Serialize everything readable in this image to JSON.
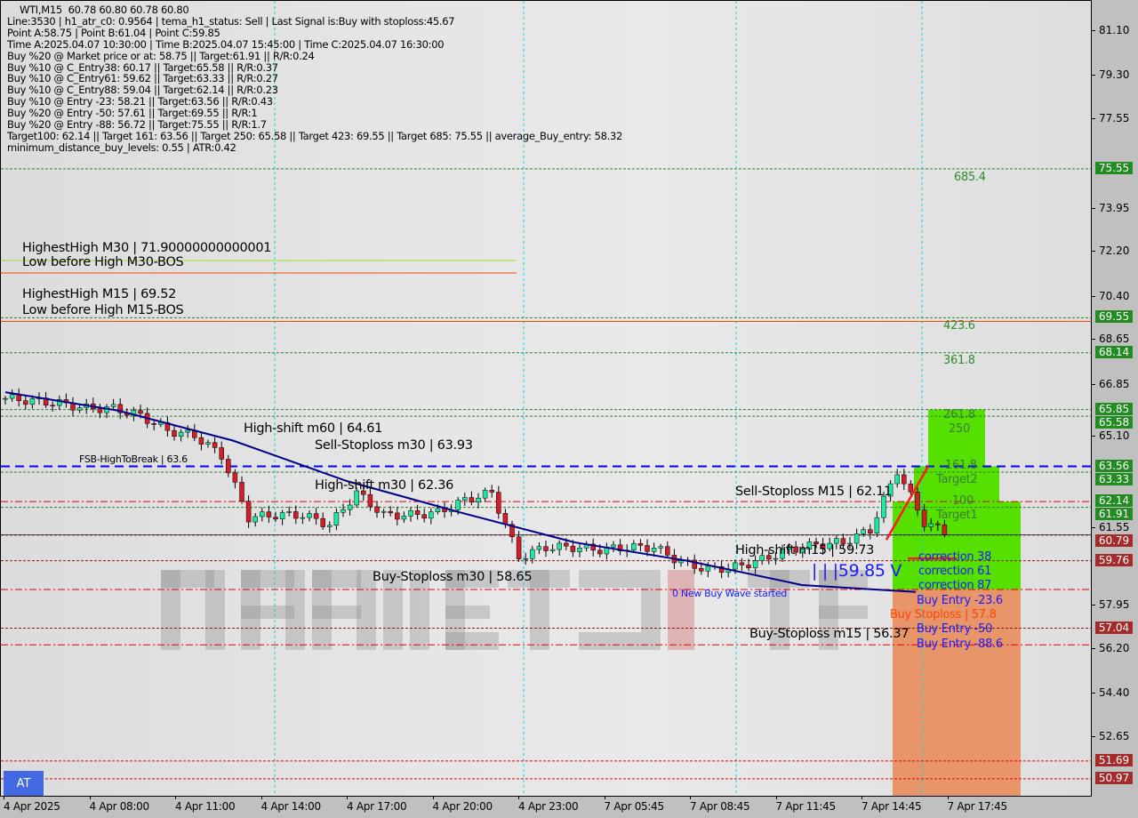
{
  "watermark": "MARKETZI TRADE",
  "info_lines": [
    "WTI,M15  60.78 60.80 60.78 60.80",
    "Line:3530 | h1_atr_c0: 0.9564 | tema_h1_status: Sell | Last Signal is:Buy with stoploss:45.67",
    "Point A:58.75 | Point B:61.04 | Point C:59.85",
    "Time A:2025.04.07 10:30:00 | Time B:2025.04.07 15:45:00 | Time C:2025.04.07 16:30:00",
    "Buy %20 @ Market price or at: 58.75 || Target:61.91 || R/R:0.24",
    "Buy %10 @ C_Entry38: 60.17 || Target:65.58 || R/R:0.37",
    "Buy %10 @ C_Entry61: 59.62 || Target:63.33 || R/R:0.27",
    "Buy %10 @ C_Entry88: 59.04 || Target:62.14 || R/R:0.23",
    "Buy %10 @ Entry -23: 58.21 || Target:63.56 || R/R:0.43",
    "Buy %20 @ Entry -50: 57.61 || Target:69.55 || R/R:1",
    "Buy %20 @ Entry -88: 56.72 || Target:75.55 || R/R:1.7",
    "Target100: 62.14 || Target 161: 63.56 || Target 250: 65.58 || Target 423: 69.55 || Target 685: 75.55 || average_Buy_entry: 58.32",
    "minimum_distance_buy_levels: 0.55 | ATR:0.42"
  ],
  "at_button": "AT",
  "chart_data": {
    "type": "candlestick",
    "symbol": "WTI",
    "timeframe": "M15",
    "ylim": [
      50.3,
      82.3
    ],
    "x_ticks": [
      "4 Apr 2025",
      "4 Apr 08:00",
      "4 Apr 11:00",
      "4 Apr 14:00",
      "4 Apr 17:00",
      "4 Apr 20:00",
      "4 Apr 23:00",
      "7 Apr 05:45",
      "7 Apr 08:45",
      "7 Apr 11:45",
      "7 Apr 14:45",
      "7 Apr 17:45"
    ],
    "y_ticks": [
      81.1,
      79.3,
      77.55,
      73.95,
      72.2,
      70.4,
      68.65,
      66.85,
      65.1,
      61.55,
      57.95,
      56.2,
      54.4,
      52.65
    ],
    "hourly_close_approx": [
      66.3,
      66.2,
      66.1,
      65.9,
      65.9,
      65.6,
      65.0,
      64.8,
      64.0,
      61.5,
      61.6,
      61.6,
      61.2,
      62.5,
      61.6,
      61.6,
      61.7,
      62.2,
      62.5,
      59.9,
      60.3,
      60.3,
      60.2,
      60.3,
      60.3,
      59.7,
      59.4,
      59.5,
      59.8,
      60.2,
      60.4,
      60.5,
      61.0,
      63.4,
      61.3,
      60.8
    ],
    "moving_average_approx": [
      66.55,
      65.8,
      64.6,
      62.97,
      61.7,
      60.5,
      59.75,
      58.78,
      58.5
    ],
    "price_badges": [
      {
        "value": "75.55",
        "color": "#228b22"
      },
      {
        "value": "69.55",
        "color": "#228b22"
      },
      {
        "value": "68.14",
        "color": "#228b22"
      },
      {
        "value": "65.58",
        "color": "#228b22"
      },
      {
        "value": "65.85",
        "color": "#228b22"
      },
      {
        "value": "63.33",
        "color": "#228b22"
      },
      {
        "value": "63.56",
        "color": "#228b22"
      },
      {
        "value": "62.14",
        "color": "#228b22"
      },
      {
        "value": "61.91",
        "color": "#228b22"
      },
      {
        "value": "60.79",
        "color": "#a52a2a"
      },
      {
        "value": "59.76",
        "color": "#a52a2a"
      },
      {
        "value": "57.04",
        "color": "#a52a2a"
      },
      {
        "value": "51.69",
        "color": "#a52a2a"
      },
      {
        "value": "50.97",
        "color": "#a52a2a"
      }
    ],
    "levels": [
      {
        "price": 75.55,
        "color": "#2e7d32",
        "style": "dash"
      },
      {
        "price": 69.55,
        "color": "#2e7d32",
        "style": "dash"
      },
      {
        "price": 69.4,
        "color": "#ff4500",
        "style": "solid"
      },
      {
        "price": 68.14,
        "color": "#2e7d32",
        "style": "dash"
      },
      {
        "price": 65.85,
        "color": "#2e7d32",
        "style": "dash"
      },
      {
        "price": 65.58,
        "color": "#2e7d32",
        "style": "dash"
      },
      {
        "price": 63.56,
        "color": "#0000ff",
        "style": "bigdash"
      },
      {
        "price": 63.33,
        "color": "#2e7d32",
        "style": "dash"
      },
      {
        "price": 62.14,
        "color": "#e00000",
        "style": "dashdot"
      },
      {
        "price": 61.91,
        "color": "#2e7d32",
        "style": "dash"
      },
      {
        "price": 60.79,
        "color": "#8b1a1a",
        "style": "dash"
      },
      {
        "price": 59.76,
        "color": "#8b1a1a",
        "style": "dash"
      },
      {
        "price": 58.6,
        "color": "#e00000",
        "style": "dashdot"
      },
      {
        "price": 57.04,
        "color": "#8b1a1a",
        "style": "dash"
      },
      {
        "price": 56.37,
        "color": "#e00000",
        "style": "dashdot"
      },
      {
        "price": 51.69,
        "color": "#e00000",
        "style": "dash"
      },
      {
        "price": 50.97,
        "color": "#e00000",
        "style": "dash"
      }
    ],
    "annotations": {
      "hh_m30": "HighestHigh   M30 | 71.90000000000001",
      "lbh_m30": "Low before High   M30-BOS",
      "hh_m15": "HighestHigh   M15 | 69.52",
      "lbh_m15": "Low before High   M15-BOS",
      "high_shift_m60": "High-shift m60 | 64.61",
      "sell_sl_m30": "Sell-Stoploss m30 | 63.93",
      "fsb": "FSB-HighToBreak | 63.6",
      "high_shift_m30": "High-shift m30 | 62.36",
      "buy_sl_m30": "Buy-Stoploss m30 | 58.65",
      "sell_sl_m15": "Sell-Stoploss M15 | 62.11",
      "high_shift_m15": "High-shift m15 | 59.73",
      "new_wave": "0 New Buy Wave started",
      "buy_sl_m15": "Buy-Stoploss m15 | 56.37",
      "point_c": "| | |59.85 V",
      "fib_685": "685.4",
      "fib_423": "423.6",
      "fib_361": "361.8",
      "fib_261": "261.8",
      "fib_250": "250",
      "fib_161": "161.8",
      "target2": "Target2",
      "fib_100": "100",
      "target1": "Target1",
      "corr38": "correction 38",
      "corr61": "correction 61",
      "corr87": "correction 87",
      "entry23": "Buy Entry -23.6",
      "buy_sl": "Buy Stoploss | 57.8",
      "entry50": "Buy Entry -50",
      "entry88": "Buy Entry -88.6"
    },
    "colors": {
      "bull": "#1de9a0",
      "bear": "#d11f2a",
      "ma": "#00008b",
      "target_zone": "#55e000",
      "stop_zone": "#e8956a"
    }
  }
}
